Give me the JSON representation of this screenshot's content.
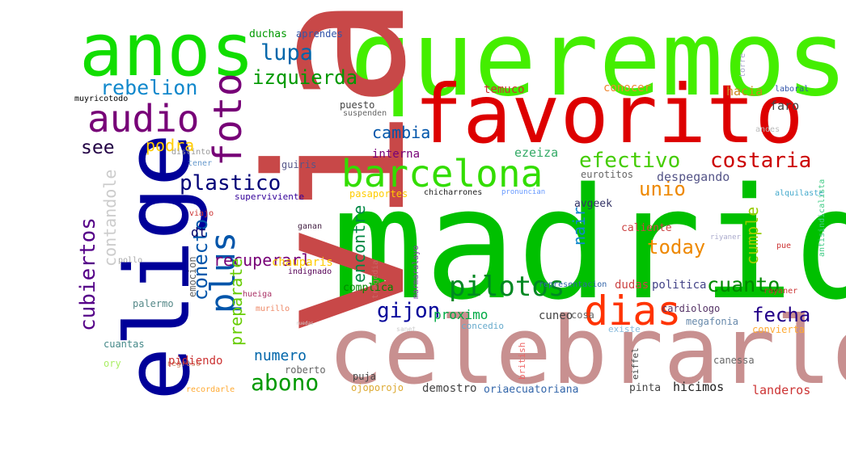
{
  "words": [
    {
      "text": "madrid",
      "color": "#00c000"
    },
    {
      "text": "queremos",
      "color": "#44ee00"
    },
    {
      "text": "via",
      "color": "#c84848"
    },
    {
      "text": "celebrarlo",
      "color": "#c89090"
    },
    {
      "text": "favorito",
      "color": "#dd0000"
    },
    {
      "text": "elige",
      "color": "#000099"
    },
    {
      "text": "anos",
      "color": "#11dd00"
    },
    {
      "text": "audio",
      "color": "#770077"
    },
    {
      "text": "foto",
      "color": "#770077"
    },
    {
      "text": "barcelona",
      "color": "#33dd00"
    },
    {
      "text": "dias",
      "color": "#ff3300"
    },
    {
      "text": "plus",
      "color": "#0055aa"
    },
    {
      "text": "pilotos",
      "color": "#008822"
    },
    {
      "text": "lupa",
      "color": "#0066aa"
    },
    {
      "text": "rebelion",
      "color": "#1188cc"
    },
    {
      "text": "izquierda",
      "color": "#009900"
    },
    {
      "text": "plastico",
      "color": "#000077"
    },
    {
      "text": "efectivo",
      "color": "#44cc00"
    },
    {
      "text": "costaria",
      "color": "#cc0000"
    },
    {
      "text": "cubiertos",
      "color": "#550088"
    },
    {
      "text": "abono",
      "color": "#009900"
    },
    {
      "text": "gijon",
      "color": "#000099"
    },
    {
      "text": "conecto",
      "color": "#0055aa"
    },
    {
      "text": "cuanto",
      "color": "#008800"
    },
    {
      "text": "fecha",
      "color": "#220088"
    },
    {
      "text": "today",
      "color": "#ee8800"
    },
    {
      "text": "unio",
      "color": "#ee8800"
    },
    {
      "text": "see",
      "color": "#220044"
    },
    {
      "text": "podra",
      "color": "#ffcc00"
    },
    {
      "text": "contandole",
      "color": "#cccccc"
    },
    {
      "text": "cambia",
      "color": "#0055aa"
    },
    {
      "text": "encontre",
      "color": "#008844"
    },
    {
      "text": "nair",
      "color": "#1188cc"
    },
    {
      "text": "cumple",
      "color": "#99cc00"
    },
    {
      "text": "recuperarl",
      "color": "#770077"
    },
    {
      "text": "preparate",
      "color": "#66cc00"
    },
    {
      "text": "numero",
      "color": "#0066aa"
    },
    {
      "text": "proximo",
      "color": "#00aa44"
    },
    {
      "text": "dt",
      "color": "#000066"
    },
    {
      "text": "duchas",
      "color": "#009900"
    },
    {
      "text": "aprendes",
      "color": "#3355aa"
    },
    {
      "text": "muyricotodo",
      "color": "#000000"
    },
    {
      "text": "temuco",
      "color": "#cc3333"
    },
    {
      "text": "conocer",
      "color": "#ee8833"
    },
    {
      "text": "hacia",
      "color": "#cc8822"
    },
    {
      "text": "faro",
      "color": "#444444"
    },
    {
      "text": "laboral",
      "color": "#3355aa"
    },
    {
      "text": "torre",
      "color": "#aaaacc"
    },
    {
      "text": "puesto",
      "color": "#444444"
    },
    {
      "text": "suspenden",
      "color": "#666666"
    },
    {
      "text": "andes",
      "color": "#bbbbbb"
    },
    {
      "text": "interna",
      "color": "#770077"
    },
    {
      "text": "ezeiza",
      "color": "#33aa66"
    },
    {
      "text": "distinto",
      "color": "#999999"
    },
    {
      "text": "tener",
      "color": "#6699cc"
    },
    {
      "text": "guiris",
      "color": "#555588"
    },
    {
      "text": "eurotitos",
      "color": "#666666"
    },
    {
      "text": "despegando",
      "color": "#555588"
    },
    {
      "text": "superviviente",
      "color": "#330099"
    },
    {
      "text": "pasaportes",
      "color": "#ffcc00"
    },
    {
      "text": "chicharrones",
      "color": "#222222"
    },
    {
      "text": "pronuncian",
      "color": "#6699ff"
    },
    {
      "text": "avgeek",
      "color": "#333366"
    },
    {
      "text": "alquilaste",
      "color": "#44aacc"
    },
    {
      "text": "antisindicalista",
      "color": "#44cc88"
    },
    {
      "text": "viajo",
      "color": "#cc3333"
    },
    {
      "text": "ganan",
      "color": "#442244"
    },
    {
      "text": "caliente",
      "color": "#cc4444"
    },
    {
      "text": "pue",
      "color": "#cc3333"
    },
    {
      "text": "pollo",
      "color": "#aaaaaa"
    },
    {
      "text": "tragedia",
      "color": "#cc6666"
    },
    {
      "text": "marmaralayo",
      "color": "#8844aa"
    },
    {
      "text": "chauparis",
      "color": "#ffcc00"
    },
    {
      "text": "indignado",
      "color": "#550055"
    },
    {
      "text": "emocion",
      "color": "#666666"
    },
    {
      "text": "complica",
      "color": "#008800"
    },
    {
      "text": "representacion",
      "color": "#3366aa"
    },
    {
      "text": "politica",
      "color": "#444488"
    },
    {
      "text": "rayaner",
      "color": "#cc3333"
    },
    {
      "text": "dudas",
      "color": "#cc4444"
    },
    {
      "text": "cardiologo",
      "color": "#553366"
    },
    {
      "text": "palermo",
      "color": "#558888"
    },
    {
      "text": "hueiga",
      "color": "#aa3366"
    },
    {
      "text": "murillo",
      "color": "#ee8866"
    },
    {
      "text": "cuneo",
      "color": "#444444"
    },
    {
      "text": "cosa",
      "color": "#666666"
    },
    {
      "text": "concedio",
      "color": "#66aacc"
    },
    {
      "text": "existe",
      "color": "#88bbdd"
    },
    {
      "text": "megafonia",
      "color": "#6688aa"
    },
    {
      "text": "convierta",
      "color": "#ffaa33"
    },
    {
      "text": "cuantas",
      "color": "#448888"
    },
    {
      "text": "regreso",
      "color": "#cc8866"
    },
    {
      "text": "ory",
      "color": "#aaee66"
    },
    {
      "text": "pidiendo",
      "color": "#cc3333"
    },
    {
      "text": "roberto",
      "color": "#666666"
    },
    {
      "text": "puja",
      "color": "#444444"
    },
    {
      "text": "british",
      "color": "#ee6666"
    },
    {
      "text": "eiffel",
      "color": "#444444"
    },
    {
      "text": "canessa",
      "color": "#666666"
    },
    {
      "text": "recordarle",
      "color": "#ffaa33"
    },
    {
      "text": "ojoporojo",
      "color": "#ddaa33"
    },
    {
      "text": "demostro",
      "color": "#444444"
    },
    {
      "text": "oriaecuatoriana",
      "color": "#3366aa"
    },
    {
      "text": "pinta",
      "color": "#444444"
    },
    {
      "text": "hicimos",
      "color": "#222222"
    },
    {
      "text": "landeros",
      "color": "#cc3333"
    },
    {
      "text": "sanet",
      "color": "#cccccc"
    },
    {
      "text": "riyaner",
      "color": "#aaaacc"
    },
    {
      "text": "ruedas",
      "color": "#cccccc"
    }
  ]
}
